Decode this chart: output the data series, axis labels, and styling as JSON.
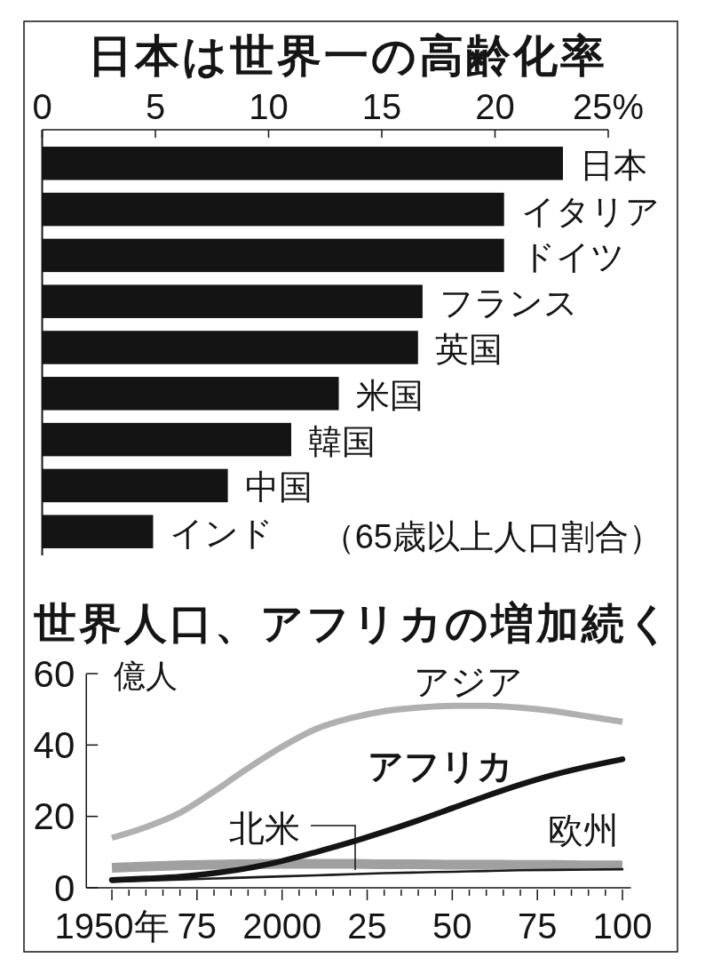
{
  "chart_data": [
    {
      "type": "bar",
      "orientation": "horizontal",
      "title": "日本は世界一の高齢化率",
      "categories": [
        "日本",
        "イタリア",
        "ドイツ",
        "フランス",
        "英国",
        "米国",
        "韓国",
        "中国",
        "インド"
      ],
      "values": [
        23.0,
        20.4,
        20.4,
        16.8,
        16.6,
        13.1,
        11.0,
        8.2,
        4.9
      ],
      "color": "#141414",
      "xlim": [
        0,
        25
      ],
      "xticks": [
        0,
        5,
        10,
        15,
        20,
        {
          "value": 25,
          "label": "25%"
        }
      ],
      "annotations": [
        "（65歳以上人口割合）"
      ]
    },
    {
      "type": "line",
      "title": "世界人口、アフリカの増加続く",
      "ylabel": "億人",
      "x": [
        "1950",
        "1960",
        "1970",
        "1980",
        "1990",
        "2000",
        "2010",
        "2020",
        "2030",
        "2040",
        "2050",
        "2060",
        "2070",
        "2080",
        "2090",
        "2100"
      ],
      "series": [
        {
          "name": "アジア",
          "color": "#b0b0b0",
          "values": [
            14,
            17,
            21,
            27,
            33.5,
            39.5,
            44.5,
            47.5,
            49.5,
            50.5,
            51,
            51,
            50.5,
            49.5,
            48,
            46.5
          ]
        },
        {
          "name": "欧州",
          "color": "#a0a0a0",
          "values": [
            5.6,
            6,
            6.3,
            6.5,
            6.6,
            6.7,
            6.7,
            6.7,
            6.6,
            6.6,
            6.5,
            6.5,
            6.4,
            6.4,
            6.3,
            6.3
          ]
        },
        {
          "name": "北米",
          "color": "#1a1a1a",
          "values": [
            1.7,
            2,
            2.3,
            2.6,
            2.9,
            3.2,
            3.5,
            3.8,
            4.1,
            4.3,
            4.5,
            4.7,
            4.9,
            5,
            5.1,
            5.2
          ]
        },
        {
          "name": "アフリカ",
          "color": "#141414",
          "values": [
            2.2,
            2.6,
            3.1,
            4.1,
            5.5,
            7.5,
            10,
            12.7,
            15.7,
            18.9,
            22.3,
            25.7,
            28.9,
            31.7,
            34,
            36
          ]
        }
      ],
      "xlim": [
        "1942-07",
        "2102-07"
      ],
      "ylim": [
        0,
        60
      ],
      "xticks": [
        {
          "value": "1950",
          "label": "1950年"
        },
        {
          "value": "1955",
          "label": null
        },
        {
          "value": "1960",
          "label": null
        },
        {
          "value": "1965",
          "label": null
        },
        {
          "value": "1970",
          "label": null
        },
        {
          "value": "1975",
          "label": "75"
        },
        {
          "value": "1980",
          "label": null
        },
        {
          "value": "1985",
          "label": null
        },
        {
          "value": "1990",
          "label": null
        },
        {
          "value": "1995",
          "label": null
        },
        {
          "value": "2000",
          "label": "2000"
        },
        {
          "value": "2005",
          "label": null
        },
        {
          "value": "2010",
          "label": null
        },
        {
          "value": "2015",
          "label": null
        },
        {
          "value": "2020",
          "label": null
        },
        {
          "value": "2025",
          "label": "25"
        },
        {
          "value": "2030",
          "label": null
        },
        {
          "value": "2035",
          "label": null
        },
        {
          "value": "2040",
          "label": null
        },
        {
          "value": "2045",
          "label": null
        },
        {
          "value": "2050",
          "label": "50"
        },
        {
          "value": "2055",
          "label": null
        },
        {
          "value": "2060",
          "label": null
        },
        {
          "value": "2065",
          "label": null
        },
        {
          "value": "2070",
          "label": null
        },
        {
          "value": "2075",
          "label": "75"
        },
        {
          "value": "2080",
          "label": null
        },
        {
          "value": "2085",
          "label": null
        },
        {
          "value": "2090",
          "label": null
        },
        {
          "value": "2095",
          "label": null
        },
        {
          "value": "2100",
          "label": "100"
        }
      ],
      "yticks": [
        0,
        20,
        40,
        60
      ]
    }
  ]
}
